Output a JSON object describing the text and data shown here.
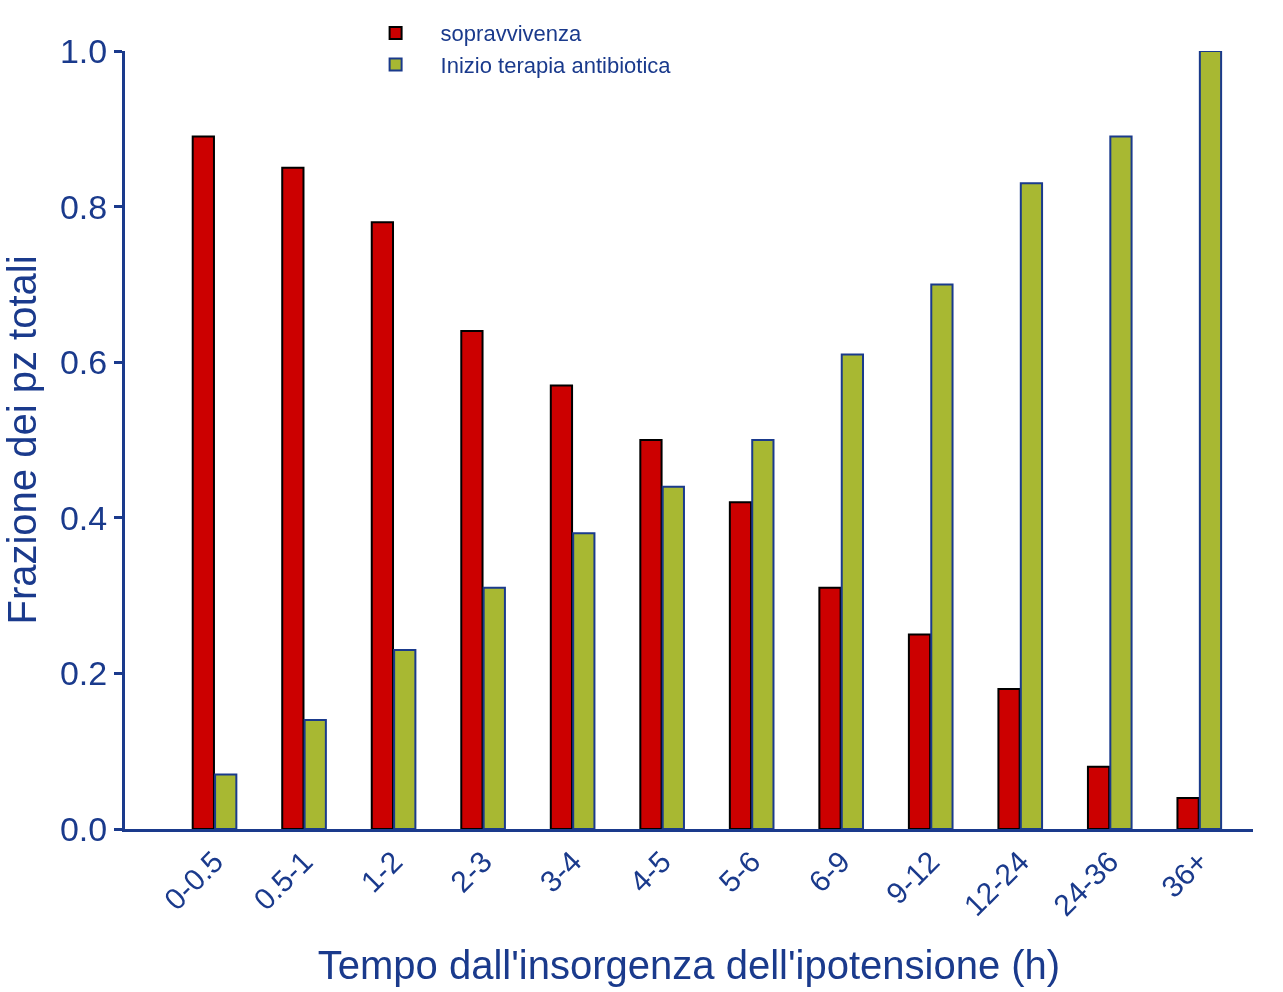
{
  "chart_data": {
    "type": "bar",
    "xlabel": "Tempo dall'insorgenza dell'ipotensione (h)",
    "ylabel": "Frazione dei pz totali",
    "categories": [
      "0-0.5",
      "0.5-1",
      "1-2",
      "2-3",
      "3-4",
      "4-5",
      "5-6",
      "6-9",
      "9-12",
      "12-24",
      "24-36",
      "36+"
    ],
    "series": [
      {
        "name": "sopravvivenza",
        "color": "#cc0000",
        "values": [
          0.89,
          0.85,
          0.78,
          0.64,
          0.57,
          0.5,
          0.42,
          0.31,
          0.25,
          0.18,
          0.08,
          0.04
        ]
      },
      {
        "name": "Inizio terapia antibiotica",
        "color": "#a8b832",
        "values": [
          0.07,
          0.14,
          0.23,
          0.31,
          0.38,
          0.44,
          0.5,
          0.61,
          0.7,
          0.83,
          0.89,
          1.0
        ]
      }
    ],
    "ylim": [
      0,
      1.0
    ],
    "yticks": [
      {
        "value": 0,
        "label": "0.0"
      },
      0.2,
      0.4,
      0.6,
      0.8,
      {
        "value": 1,
        "label": "1.0"
      }
    ],
    "legend": "top"
  }
}
